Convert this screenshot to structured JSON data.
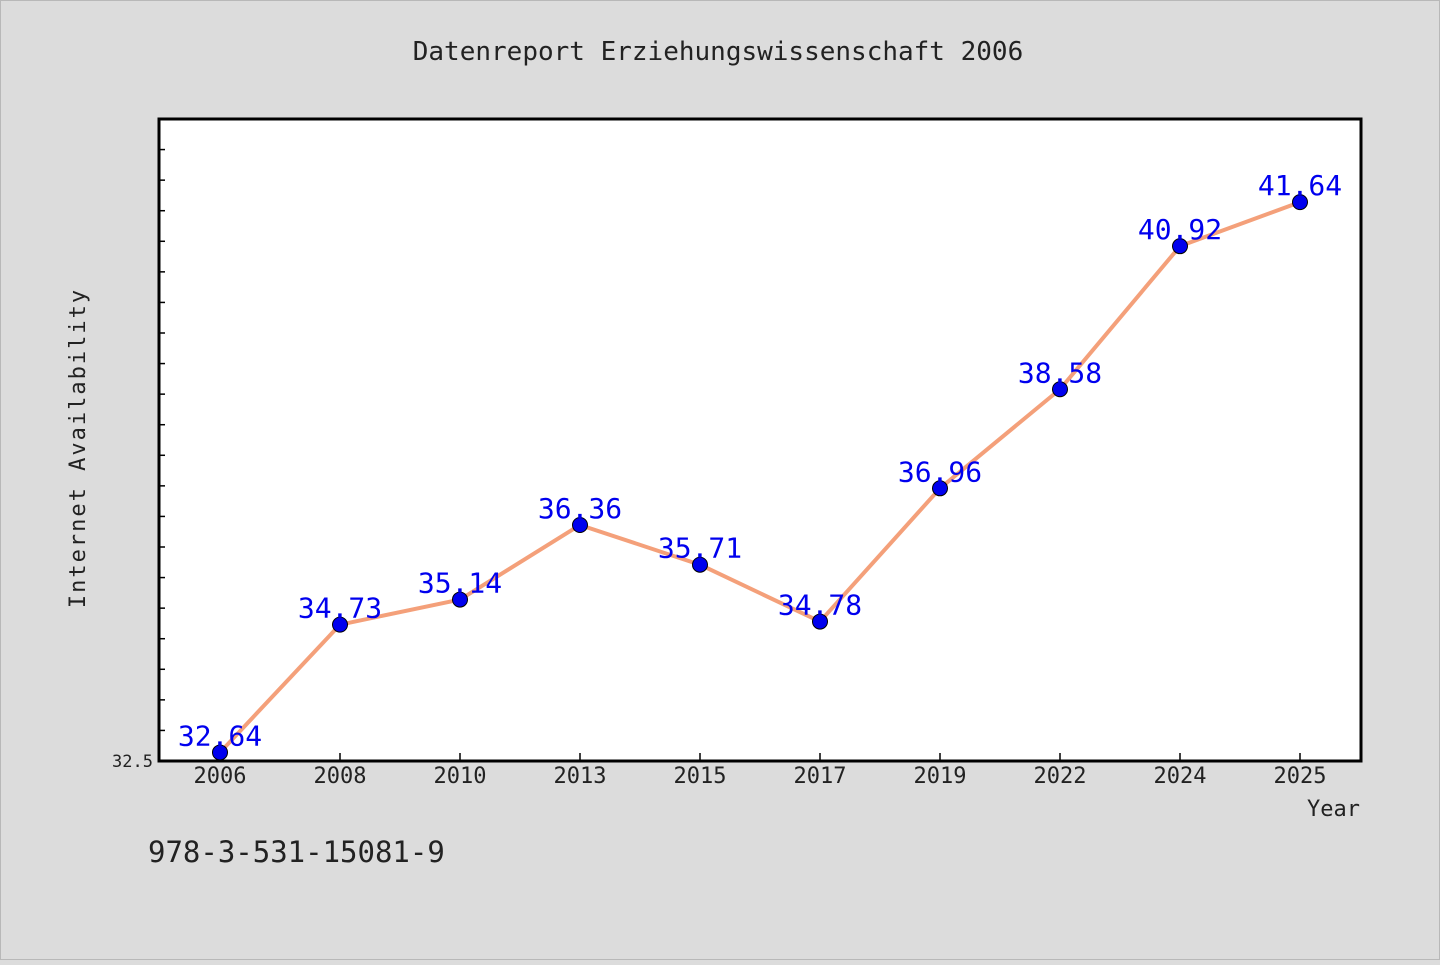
{
  "chart_data": {
    "type": "line",
    "title": "Datenreport Erziehungswissenschaft 2006",
    "xlabel": "Year",
    "ylabel": "Internet Availability",
    "categories": [
      "2006",
      "2008",
      "2010",
      "2013",
      "2015",
      "2017",
      "2019",
      "2022",
      "2024",
      "2025"
    ],
    "series": [
      {
        "values": [
          32.64,
          34.73,
          35.14,
          36.36,
          35.71,
          34.78,
          36.96,
          38.58,
          40.92,
          41.64
        ],
        "labels": [
          "32.64",
          "34.73",
          "35.14",
          "36.36",
          "35.71",
          "34.78",
          "36.96",
          "38.58",
          "40.92",
          "41.64"
        ]
      }
    ],
    "ylim": [
      32.5,
      43.0
    ],
    "y_tick_label": "32.5",
    "grid": false,
    "line_color": "#f4a07a",
    "marker_color": "#0000ee",
    "label_color": "#0000ee",
    "background": "#dcdcdc",
    "plot_background": "#ffffff"
  },
  "footer": {
    "isbn": "978-3-531-15081-9"
  }
}
